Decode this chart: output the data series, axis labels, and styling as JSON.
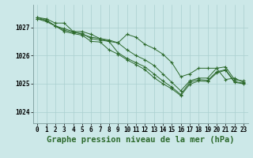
{
  "background_color": "#cce8e8",
  "grid_color": "#aacfcf",
  "line_color": "#2d6a2d",
  "marker_color": "#2d6a2d",
  "title": "Graphe pression niveau de la mer (hPa)",
  "ylabel_ticks": [
    1024,
    1025,
    1026,
    1027
  ],
  "xlim": [
    -0.5,
    23.5
  ],
  "ylim": [
    1023.6,
    1027.8
  ],
  "series": [
    [
      1027.35,
      1027.3,
      1027.15,
      1027.15,
      1026.85,
      1026.75,
      1026.65,
      1026.6,
      1026.5,
      1026.45,
      1026.75,
      1026.65,
      1026.4,
      1026.25,
      1026.05,
      1025.75,
      1025.25,
      1025.35,
      1025.55,
      1025.55,
      1025.55,
      1025.15,
      1025.2,
      1025.05
    ],
    [
      1027.35,
      1027.25,
      1027.05,
      1026.95,
      1026.85,
      1026.85,
      1026.75,
      1026.6,
      1026.55,
      1026.45,
      1026.2,
      1026.0,
      1025.85,
      1025.65,
      1025.35,
      1025.05,
      1024.75,
      1025.1,
      1025.2,
      1025.2,
      1025.55,
      1025.6,
      1025.15,
      1025.1
    ],
    [
      1027.3,
      1027.25,
      1027.05,
      1026.9,
      1026.82,
      1026.78,
      1026.6,
      1026.55,
      1026.5,
      1026.1,
      1025.9,
      1025.75,
      1025.6,
      1025.35,
      1025.1,
      1024.88,
      1024.62,
      1025.05,
      1025.15,
      1025.12,
      1025.42,
      1025.5,
      1025.08,
      1025.02
    ],
    [
      1027.3,
      1027.2,
      1027.05,
      1026.85,
      1026.78,
      1026.72,
      1026.5,
      1026.48,
      1026.2,
      1026.05,
      1025.85,
      1025.68,
      1025.5,
      1025.22,
      1025.0,
      1024.82,
      1024.58,
      1024.98,
      1025.1,
      1025.08,
      1025.38,
      1025.48,
      1025.05,
      1025.0
    ]
  ],
  "xtick_labels": [
    "0",
    "1",
    "2",
    "3",
    "4",
    "5",
    "6",
    "7",
    "8",
    "9",
    "10",
    "11",
    "12",
    "13",
    "14",
    "15",
    "16",
    "17",
    "18",
    "19",
    "20",
    "21",
    "22",
    "23"
  ],
  "title_fontsize": 7.5,
  "tick_fontsize": 5.5
}
